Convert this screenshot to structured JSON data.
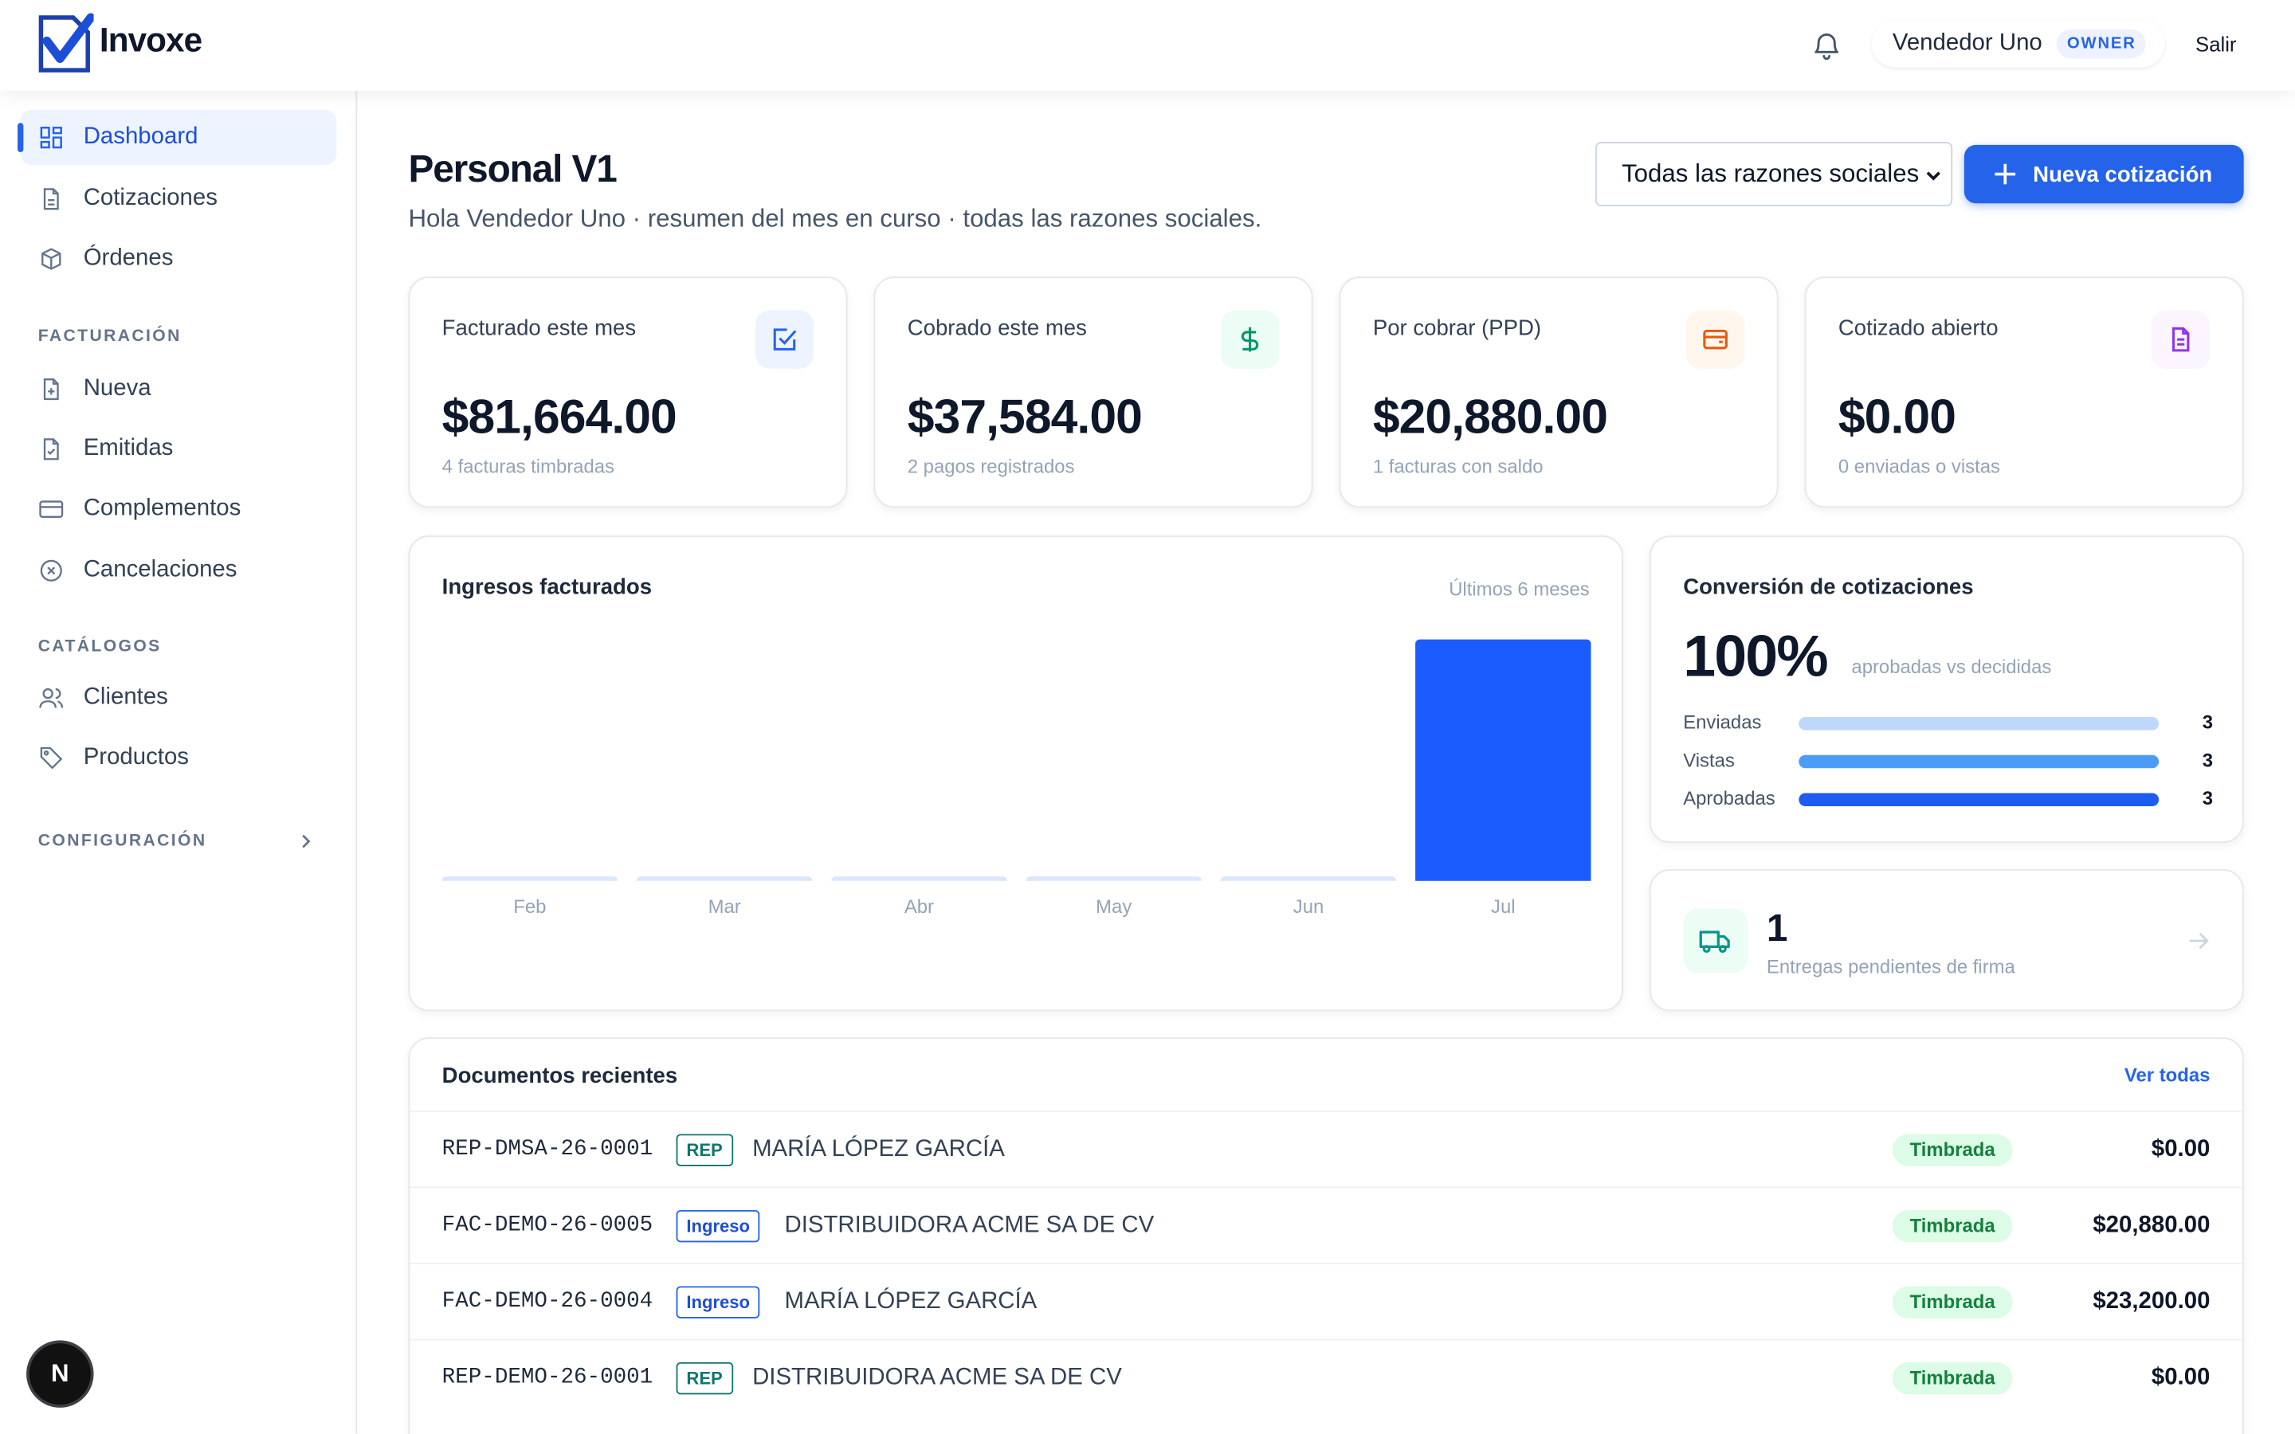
{
  "brand": {
    "name": "Invoxe",
    "accent": "#2563eb"
  },
  "header": {
    "user_name": "Vendedor Uno",
    "role_badge": "OWNER",
    "logout_label": "Salir"
  },
  "sidebar": {
    "main_items": [
      {
        "label": "Dashboard",
        "icon": "dashboard-icon",
        "active": true
      },
      {
        "label": "Cotizaciones",
        "icon": "document-icon"
      },
      {
        "label": "Órdenes",
        "icon": "box-icon"
      }
    ],
    "billing_section": "FACTURACIÓN",
    "billing_items": [
      {
        "label": "Nueva",
        "icon": "file-plus-icon"
      },
      {
        "label": "Emitidas",
        "icon": "file-check-icon"
      },
      {
        "label": "Complementos",
        "icon": "card-icon"
      },
      {
        "label": "Cancelaciones",
        "icon": "x-circle-icon"
      }
    ],
    "catalog_section": "CATÁLOGOS",
    "catalog_items": [
      {
        "label": "Clientes",
        "icon": "users-icon"
      },
      {
        "label": "Productos",
        "icon": "tag-icon"
      }
    ],
    "config_section": "CONFIGURACIÓN",
    "fab_label": "N"
  },
  "page": {
    "title": "Personal V1",
    "subtitle": "Hola Vendedor Uno · resumen del mes en curso · todas las razones sociales.",
    "filter_value": "Todas las razones sociales",
    "new_quote_label": "Nueva cotización"
  },
  "kpis": [
    {
      "label": "Facturado este mes",
      "value": "$81,664.00",
      "sub": "4 facturas timbradas",
      "icon": "check-square-icon",
      "color": "#2563eb",
      "bg": "#eef4ff"
    },
    {
      "label": "Cobrado este mes",
      "value": "$37,584.00",
      "sub": "2 pagos registrados",
      "icon": "dollar-icon",
      "color": "#059669",
      "bg": "#ecfdf5"
    },
    {
      "label": "Por cobrar (PPD)",
      "value": "$20,880.00",
      "sub": "1 facturas con saldo",
      "icon": "wallet-icon",
      "color": "#ea580c",
      "bg": "#fff7ed"
    },
    {
      "label": "Cotizado abierto",
      "value": "$0.00",
      "sub": "0 enviadas o vistas",
      "icon": "file-text-icon",
      "color": "#9333ea",
      "bg": "#faf5ff"
    }
  ],
  "revenue_card": {
    "title": "Ingresos facturados",
    "period": "Últimos 6 meses"
  },
  "chart_data": {
    "type": "bar",
    "categories": [
      "Feb",
      "Mar",
      "Abr",
      "May",
      "Jun",
      "Jul"
    ],
    "values": [
      0,
      0,
      0,
      0,
      0,
      81664
    ],
    "ylim": [
      0,
      81664
    ],
    "bar_color": "#1a5cff",
    "empty_color": "#dbe7ff"
  },
  "conversion": {
    "title": "Conversión de cotizaciones",
    "percent": "100%",
    "caption": "aprobadas vs decididas",
    "rows": [
      {
        "label": "Enviadas",
        "value": "3",
        "fraction": 1,
        "color": "#bfd7fb"
      },
      {
        "label": "Vistas",
        "value": "3",
        "fraction": 1,
        "color": "#4c9cf5"
      },
      {
        "label": "Aprobadas",
        "value": "3",
        "fraction": 1,
        "color": "#1d5cf0"
      }
    ]
  },
  "deliveries": {
    "count": "1",
    "label": "Entregas pendientes de firma"
  },
  "documents": {
    "title": "Documentos recientes",
    "view_all": "Ver todas",
    "rows": [
      {
        "folio": "REP-DMSA-26-0001",
        "type": "REP",
        "kind": "rep",
        "client": "MARÍA LÓPEZ GARCÍA",
        "status": "Timbrada",
        "amount": "$0.00"
      },
      {
        "folio": "FAC-DEMO-26-0005",
        "type": "Ingreso",
        "kind": "ing",
        "client": "DISTRIBUIDORA ACME SA DE CV",
        "status": "Timbrada",
        "amount": "$20,880.00"
      },
      {
        "folio": "FAC-DEMO-26-0004",
        "type": "Ingreso",
        "kind": "ing",
        "client": "MARÍA LÓPEZ GARCÍA",
        "status": "Timbrada",
        "amount": "$23,200.00"
      },
      {
        "folio": "REP-DEMO-26-0001",
        "type": "REP",
        "kind": "rep",
        "client": "DISTRIBUIDORA ACME SA DE CV",
        "status": "Timbrada",
        "amount": "$0.00"
      }
    ]
  }
}
